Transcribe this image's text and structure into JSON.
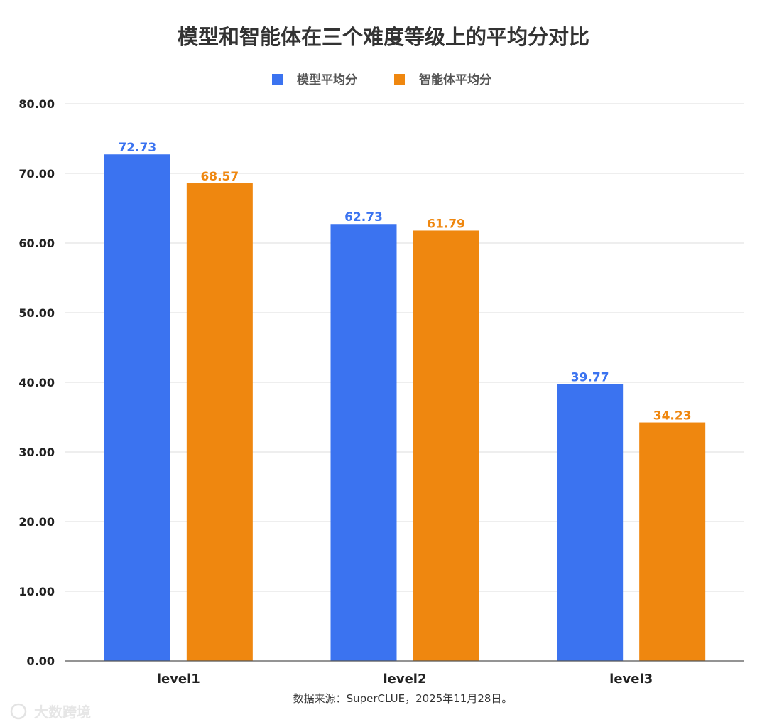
{
  "chart_data": {
    "type": "bar",
    "title": "模型和智能体在三个难度等级上的平均分对比",
    "categories": [
      "level1",
      "level2",
      "level3"
    ],
    "series": [
      {
        "name": "模型平均分",
        "color": "#3B73F0",
        "values": [
          72.73,
          62.73,
          39.77
        ],
        "labels": [
          "72.73",
          "62.73",
          "39.77"
        ]
      },
      {
        "name": "智能体平均分",
        "color": "#EF870F",
        "values": [
          68.57,
          61.79,
          34.23
        ],
        "labels": [
          "68.57",
          "61.79",
          "34.23"
        ]
      }
    ],
    "ylim": [
      0,
      80
    ],
    "yticks": [
      "0.00",
      "10.00",
      "20.00",
      "30.00",
      "40.00",
      "50.00",
      "60.00",
      "70.00",
      "80.00"
    ],
    "xlabel": "",
    "ylabel": "",
    "grid": true,
    "legend_position": "top-center"
  },
  "source_note": "数据来源：SuperCLUE，2025年11月28日。",
  "watermark": "大数跨境"
}
